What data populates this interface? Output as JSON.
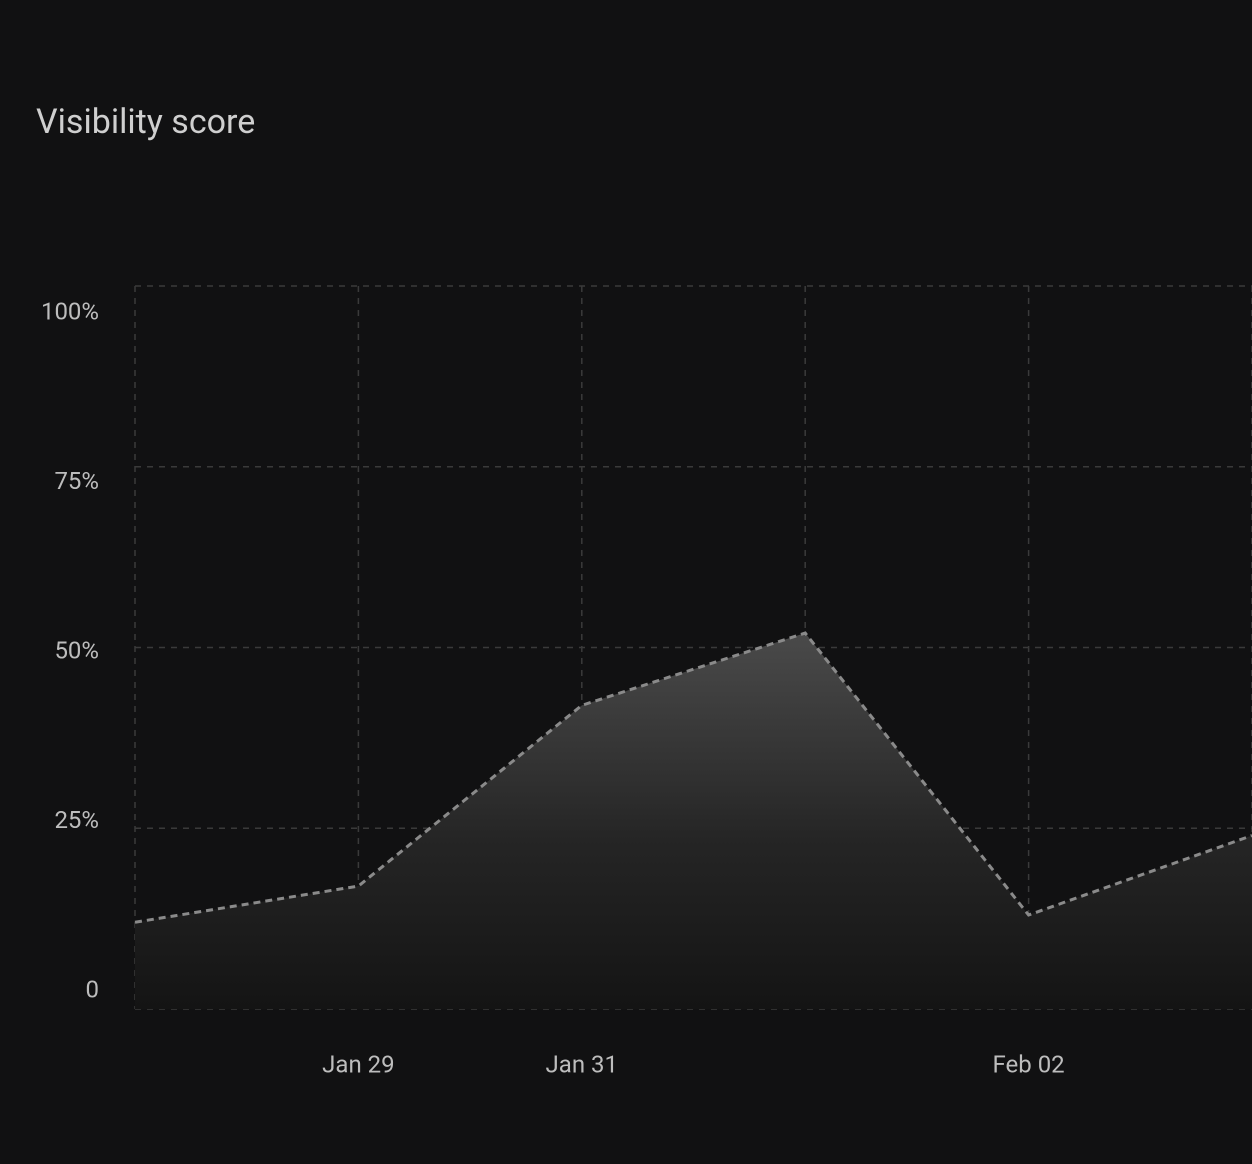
{
  "chart_data": {
    "type": "area",
    "title": "Visibility score",
    "categories": [
      null,
      "Jan 29",
      "Jan 31",
      null,
      "Feb 02",
      null
    ],
    "series": [
      {
        "name": null,
        "color": "#8a8a8a",
        "values": [
          12,
          17,
          42,
          52,
          13,
          24
        ]
      }
    ],
    "ylim": [
      0,
      100
    ],
    "yticks": [
      0,
      {
        "value": 25,
        "label": "25%"
      },
      {
        "value": 50,
        "label": "50%"
      },
      {
        "value": 75,
        "label": "75%"
      },
      {
        "value": 100,
        "label": "100%"
      }
    ],
    "grid": true
  }
}
